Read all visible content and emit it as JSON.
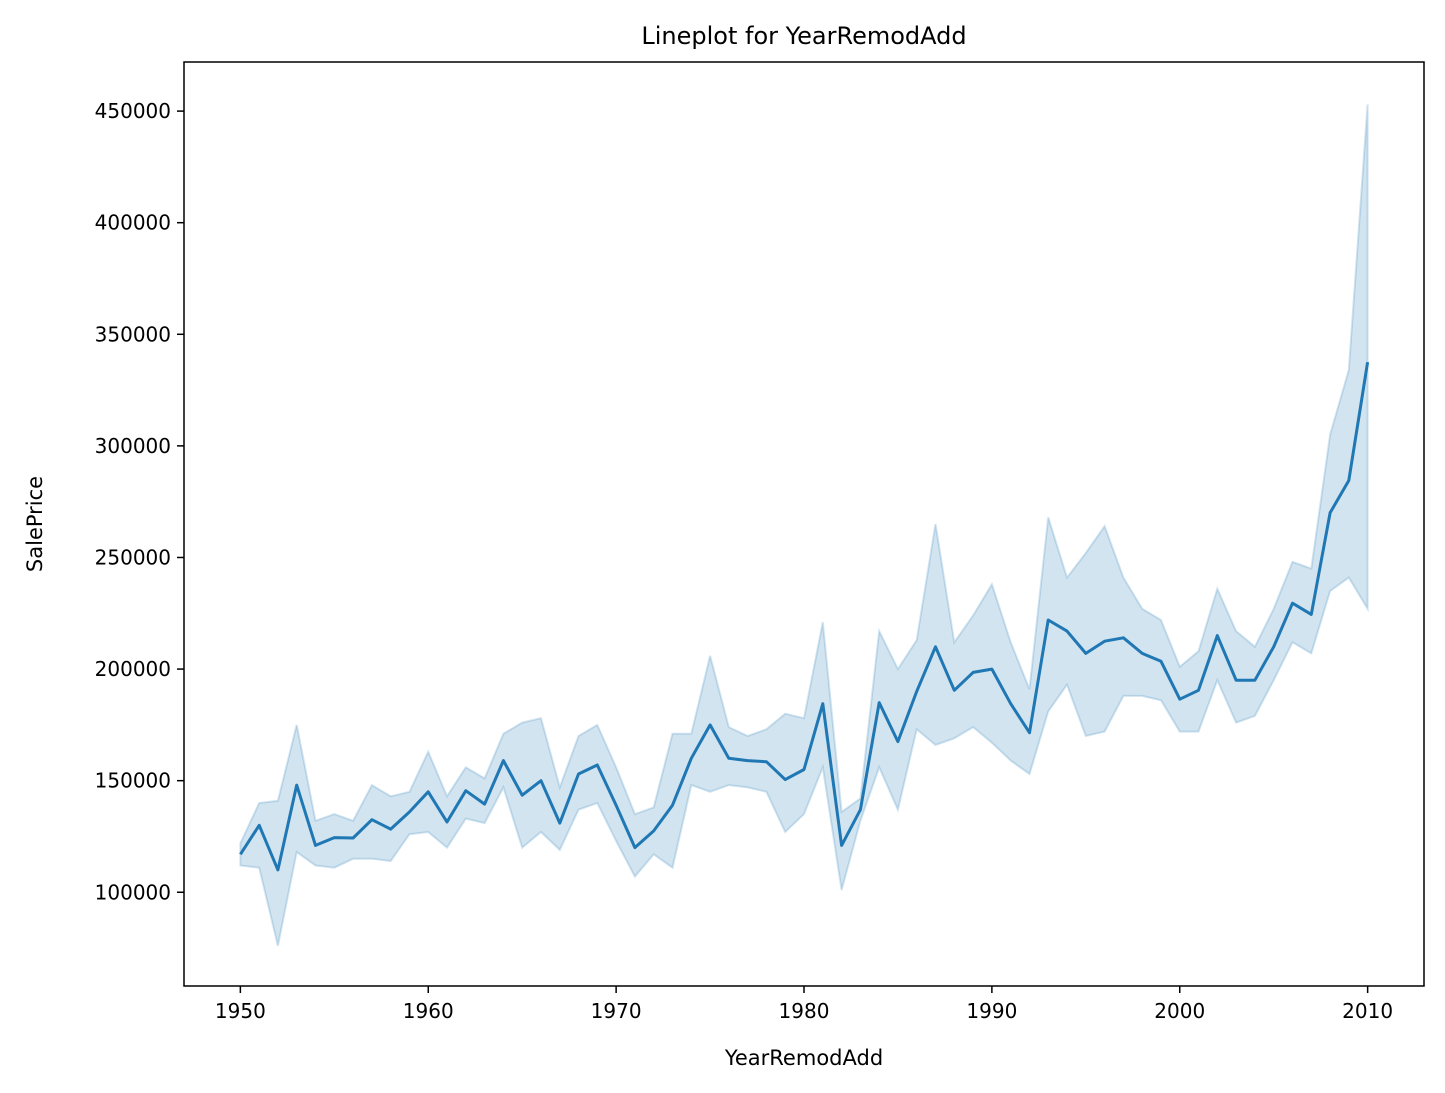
{
  "chart_data": {
    "type": "line",
    "title": "Lineplot for YearRemodAdd",
    "xlabel": "YearRemodAdd",
    "ylabel": "SalePrice",
    "xlim": [
      1947,
      2013
    ],
    "ylim": [
      58000,
      472000
    ],
    "xticks": [
      1950,
      1960,
      1970,
      1980,
      1990,
      2000,
      2010
    ],
    "yticks": [
      100000,
      150000,
      200000,
      250000,
      300000,
      350000,
      400000,
      450000
    ],
    "grid": false,
    "colors": {
      "line": "#1f77b4",
      "band": "#1f77b4"
    },
    "series": [
      {
        "x": [
          1950,
          1951,
          1952,
          1953,
          1954,
          1955,
          1956,
          1957,
          1958,
          1959,
          1960,
          1961,
          1962,
          1963,
          1964,
          1965,
          1966,
          1967,
          1968,
          1969,
          1970,
          1971,
          1972,
          1973,
          1974,
          1975,
          1976,
          1977,
          1978,
          1979,
          1980,
          1981,
          1982,
          1983,
          1984,
          1985,
          1986,
          1987,
          1988,
          1989,
          1990,
          1991,
          1992,
          1993,
          1994,
          1995,
          1996,
          1997,
          1998,
          1999,
          2000,
          2001,
          2002,
          2003,
          2004,
          2005,
          2006,
          2007,
          2008,
          2009,
          2010
        ],
        "y": [
          117000,
          130000,
          110000,
          148000,
          121000,
          124500,
          124300,
          132500,
          128300,
          136000,
          145000,
          131500,
          145500,
          139500,
          159000,
          143500,
          150000,
          131000,
          153000,
          157000,
          139000,
          120000,
          127500,
          139000,
          160000,
          175000,
          160000,
          159000,
          158500,
          150500,
          155000,
          184500,
          121000,
          137000,
          185000,
          167500,
          190000,
          210000,
          190500,
          198500,
          200000,
          184500,
          171500,
          222000,
          217000,
          207000,
          212500,
          214000,
          207000,
          203500,
          186500,
          190500,
          215000,
          195000,
          195000,
          210000,
          229500,
          224500,
          270000,
          284500,
          337500
        ],
        "ci_upper": [
          122000,
          140000,
          141000,
          175000,
          132000,
          135000,
          132000,
          148000,
          143000,
          145000,
          163000,
          143000,
          156000,
          151000,
          171000,
          176000,
          178000,
          147000,
          170000,
          175000,
          156000,
          135000,
          138000,
          171000,
          171000,
          206000,
          174000,
          170000,
          173000,
          180000,
          178000,
          221000,
          136000,
          142000,
          217000,
          200000,
          213000,
          265000,
          212000,
          224000,
          238000,
          212000,
          191000,
          268000,
          241000,
          252000,
          264000,
          241000,
          227000,
          222000,
          201000,
          208000,
          236000,
          217000,
          210000,
          227000,
          248000,
          245000,
          305000,
          334000,
          453000
        ],
        "ci_lower": [
          112000,
          111000,
          76000,
          118000,
          112000,
          111000,
          115000,
          115000,
          114000,
          126000,
          127000,
          120000,
          133000,
          131000,
          147000,
          120000,
          127000,
          119000,
          137000,
          140000,
          123000,
          107000,
          117000,
          111000,
          148000,
          145000,
          148000,
          147000,
          145000,
          127000,
          135000,
          156000,
          101000,
          132000,
          156000,
          137000,
          173000,
          166000,
          169000,
          174000,
          167000,
          159000,
          153000,
          181000,
          193000,
          170000,
          172000,
          188000,
          188000,
          186000,
          172000,
          172000,
          195000,
          176000,
          179000,
          195000,
          212000,
          207000,
          235000,
          241000,
          227000
        ]
      }
    ]
  }
}
